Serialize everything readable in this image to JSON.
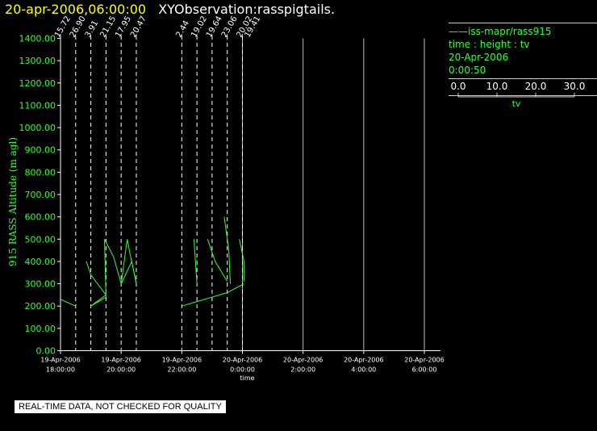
{
  "header": {
    "datetime": "20-apr-2006,06:00:00",
    "observation": "XYObservation:rasspigtails."
  },
  "legend": {
    "series_label": "iss-mapr/rass915",
    "fields": "time : height : tv",
    "date": "20-Apr-2006",
    "time": "0:00:50",
    "scale_ticks": [
      "0.0",
      "10.0",
      "20.0",
      "30.0"
    ],
    "scale_label": "tv"
  },
  "footer": {
    "quality_note": "REAL-TIME DATA, NOT CHECKED FOR QUALITY"
  },
  "colors": {
    "data": "#33ff33",
    "title": "#ffff00",
    "axis": "#ffffff",
    "grid": "#ffffff"
  },
  "chart_data": {
    "type": "line",
    "ylabel": "915 RASS Altitude (m agl)",
    "xlabel": "time",
    "ylim": [
      0,
      1400
    ],
    "xlim_hours": [
      17,
      29.3
    ],
    "y_ticks": [
      "0.00",
      "100.00",
      "200.00",
      "300.00",
      "400.00",
      "500.00",
      "600.00",
      "700.00",
      "800.00",
      "900.00",
      "1000.00",
      "1100.00",
      "1200.00",
      "1300.00",
      "1400.00"
    ],
    "x_ticks": [
      {
        "date": "19-Apr-2006",
        "time": "18:00:00",
        "h": 18
      },
      {
        "date": "19-Apr-2006",
        "time": "20:00:00",
        "h": 20
      },
      {
        "date": "19-Apr-2006",
        "time": "22:00:00",
        "h": 22
      },
      {
        "date": "20-Apr-2006",
        "time": "0:00:00",
        "h": 24
      },
      {
        "date": "20-Apr-2006",
        "time": "2:00:00",
        "h": 26
      },
      {
        "date": "20-Apr-2006",
        "time": "4:00:00",
        "h": 28
      },
      {
        "date": "20-Apr-2006",
        "time": "6:00:00",
        "h": 30
      }
    ],
    "profiles": [
      {
        "h": 18.0,
        "label": "15.72",
        "tail": [
          [
            18.0,
            230
          ],
          [
            18.5,
            200
          ]
        ]
      },
      {
        "h": 18.5,
        "label": "26.90",
        "tail": null
      },
      {
        "h": 19.0,
        "label": "3.91",
        "tail": [
          [
            18.85,
            400
          ],
          [
            19.0,
            340
          ],
          [
            19.5,
            250
          ],
          [
            19.0,
            200
          ],
          [
            19.5,
            240
          ]
        ]
      },
      {
        "h": 19.5,
        "label": "21.15",
        "tail": [
          [
            19.5,
            240
          ],
          [
            19.45,
            500
          ],
          [
            19.75,
            420
          ],
          [
            20.0,
            300
          ]
        ]
      },
      {
        "h": 20.0,
        "label": "17.95",
        "tail": [
          [
            20.0,
            300
          ],
          [
            20.2,
            500
          ],
          [
            20.3,
            430
          ],
          [
            20.5,
            300
          ]
        ]
      },
      {
        "h": 20.5,
        "label": "20.47",
        "tail": [
          [
            20.5,
            300
          ],
          [
            20.35,
            400
          ],
          [
            20.0,
            300
          ]
        ]
      },
      {
        "h": 22.0,
        "label": "2.44",
        "tail": [
          [
            22.0,
            200
          ],
          [
            23.5,
            260
          ]
        ]
      },
      {
        "h": 22.5,
        "label": "19.02",
        "tail": [
          [
            22.4,
            500
          ],
          [
            22.5,
            300
          ]
        ]
      },
      {
        "h": 23.0,
        "label": "19.64",
        "tail": [
          [
            22.85,
            500
          ],
          [
            23.1,
            400
          ],
          [
            23.5,
            310
          ]
        ]
      },
      {
        "h": 23.5,
        "label": "23.06",
        "tail": [
          [
            23.4,
            600
          ],
          [
            23.55,
            450
          ],
          [
            23.6,
            300
          ]
        ]
      },
      {
        "h": 24.0,
        "label": "20.02",
        "tail": [
          [
            23.9,
            500
          ],
          [
            24.05,
            400
          ],
          [
            24.05,
            310
          ]
        ]
      },
      {
        "h": 24.0,
        "label": "19.41",
        "tail": [
          [
            23.5,
            260
          ],
          [
            24.05,
            300
          ]
        ]
      }
    ],
    "grid_lines_h": [
      24.0,
      26.0,
      28.0,
      30.0
    ],
    "grid": true
  }
}
